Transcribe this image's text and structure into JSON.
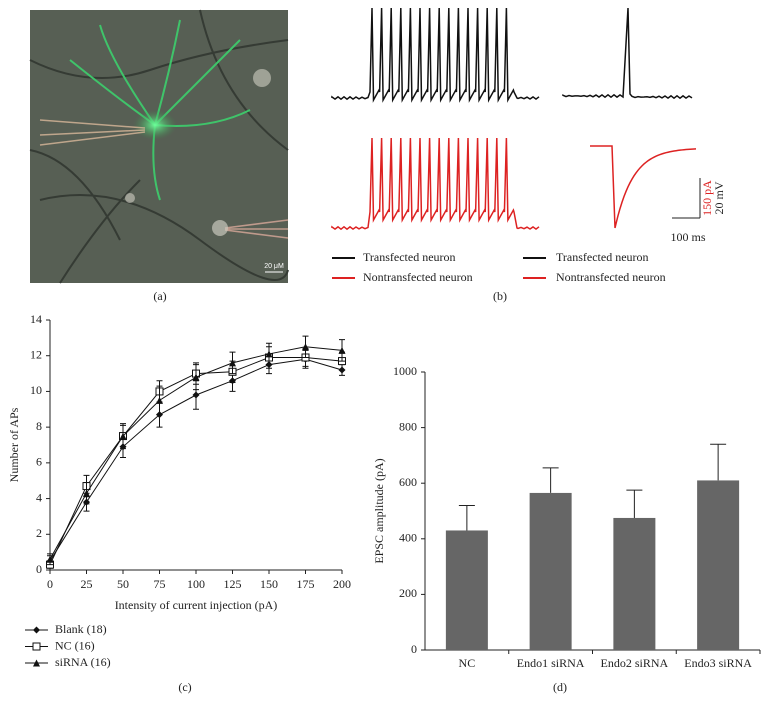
{
  "figure": {
    "panel_labels": [
      "(a)",
      "(b)",
      "(c)",
      "(d)"
    ],
    "image_scale_label": "20 μM",
    "trace_legend_left": [
      "Transfected neuron",
      "Nontransfected neuron"
    ],
    "trace_legend_right": [
      "Transfected neuron",
      "Nontransfected neuron"
    ],
    "scale_bar_current": "150 pA",
    "scale_bar_voltage": "20 mV",
    "scale_bar_time": "100 ms"
  },
  "chart_data": [
    {
      "type": "line",
      "xlabel": "Intensity of current injection (pA)",
      "ylabel": "Number of APs",
      "x": [
        0,
        25,
        50,
        75,
        100,
        125,
        150,
        175,
        200
      ],
      "xlim": [
        0,
        200
      ],
      "xticks": [
        0,
        25,
        50,
        75,
        100,
        125,
        150,
        175,
        200
      ],
      "ylim": [
        0,
        14
      ],
      "yticks": [
        0,
        2,
        4,
        6,
        8,
        10,
        12,
        14
      ],
      "series": [
        {
          "name": "Blank (18)",
          "color": "#111111",
          "marker": "diamond",
          "values": [
            0.5,
            3.8,
            6.9,
            8.7,
            9.8,
            10.6,
            11.5,
            11.8,
            11.2
          ],
          "errors": [
            0.3,
            0.5,
            0.6,
            0.7,
            0.8,
            0.6,
            0.5,
            0.5,
            0.3
          ]
        },
        {
          "name": "NC (16)",
          "color": "#111111",
          "marker": "open-square",
          "values": [
            0.3,
            4.7,
            7.5,
            10.0,
            11.0,
            11.1,
            11.9,
            11.9,
            11.7
          ],
          "errors": [
            0.2,
            0.6,
            0.6,
            0.6,
            0.6,
            0.6,
            0.6,
            0.5,
            0.5
          ]
        },
        {
          "name": "siRNA (16)",
          "color": "#111111",
          "marker": "triangle",
          "values": [
            0.6,
            4.3,
            7.5,
            9.5,
            10.8,
            11.6,
            12.1,
            12.5,
            12.3
          ],
          "errors": [
            0.3,
            0.6,
            0.7,
            0.8,
            0.7,
            0.6,
            0.6,
            0.6,
            0.6
          ]
        }
      ]
    },
    {
      "type": "bar",
      "ylabel": "EPSC amplitude (pA)",
      "categories": [
        "NC",
        "Endo1 siRNA",
        "Endo2 siRNA",
        "Endo3 siRNA"
      ],
      "values": [
        430,
        565,
        475,
        610
      ],
      "errors": [
        90,
        90,
        100,
        130
      ],
      "color": "#666666",
      "ylim": [
        0,
        1000
      ],
      "yticks": [
        0,
        200,
        400,
        600,
        800,
        1000
      ]
    }
  ]
}
